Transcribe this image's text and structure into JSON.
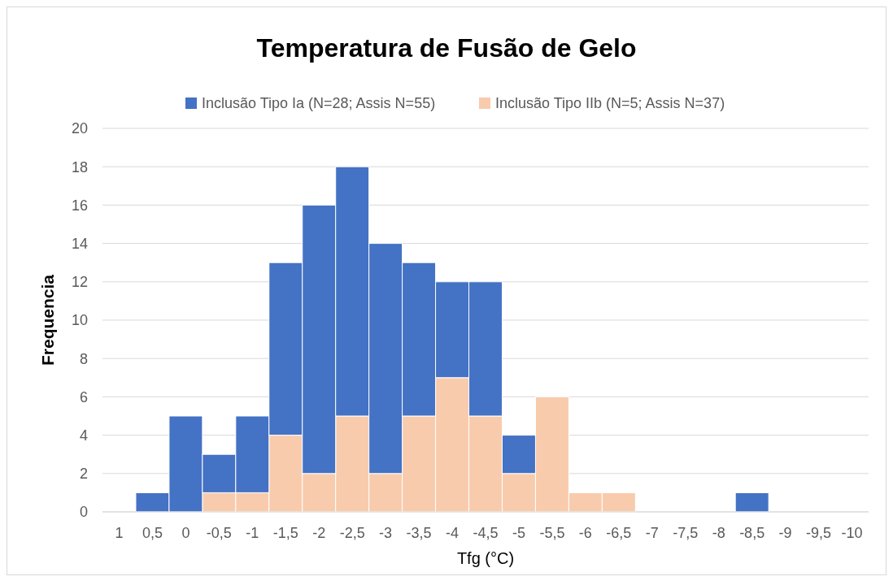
{
  "chart_data": {
    "type": "bar",
    "title": "Temperatura de Fusão de Gelo",
    "xlabel": "Tfg (°C)",
    "ylabel": "Frequencia",
    "categories": [
      "1",
      "0,5",
      "0",
      "-0,5",
      "-1",
      "-1,5",
      "-2",
      "-2,5",
      "-3",
      "-3,5",
      "-4",
      "-4,5",
      "-5",
      "-5,5",
      "-6",
      "-6,5",
      "-7",
      "-7,5",
      "-8",
      "-8,5",
      "-9",
      "-9,5",
      "-10"
    ],
    "stacked": true,
    "series": [
      {
        "name": "Inclusão Tipo IIb (N=5; Assis N=37)",
        "color": "#f8cbad",
        "values": [
          0,
          0,
          0,
          1,
          1,
          4,
          2,
          5,
          2,
          5,
          7,
          5,
          2,
          6,
          1,
          1,
          0,
          0,
          0,
          0,
          0,
          0,
          0
        ]
      },
      {
        "name": "Inclusão Tipo Ia (N=28; Assis N=55)",
        "color": "#4472c4",
        "values": [
          0,
          1,
          5,
          2,
          4,
          9,
          14,
          13,
          12,
          8,
          5,
          7,
          2,
          0,
          0,
          0,
          0,
          0,
          0,
          1,
          0,
          0,
          0
        ]
      }
    ],
    "ylim": [
      0,
      20
    ],
    "yticks": [
      0,
      2,
      4,
      6,
      8,
      10,
      12,
      14,
      16,
      18,
      20
    ],
    "grid": "y",
    "legend": "top"
  }
}
